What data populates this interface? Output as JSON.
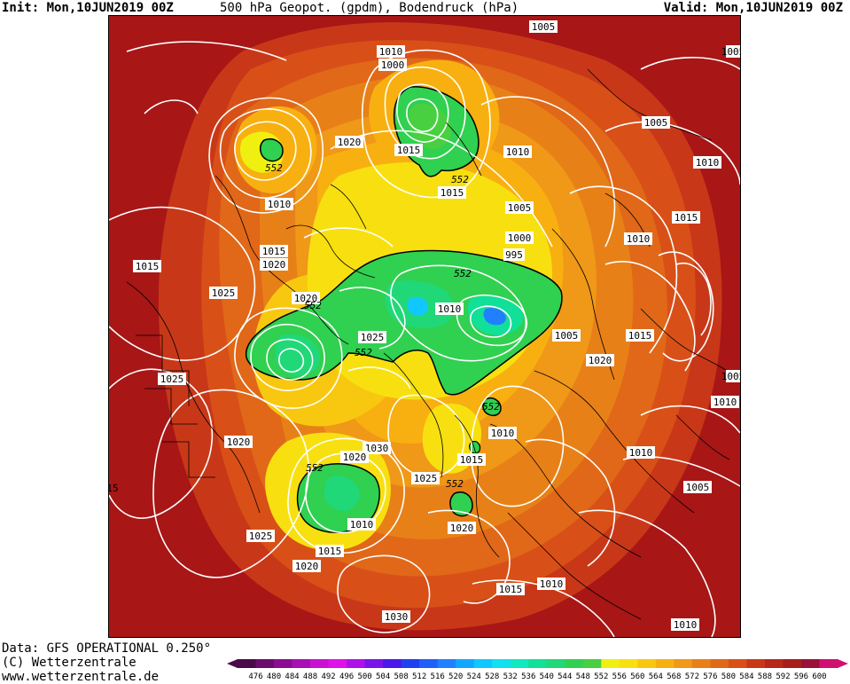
{
  "header": {
    "init": "Init: Mon,10JUN2019 00Z",
    "title": "500 hPa Geopot. (gpdm), Bodendruck (hPa)",
    "valid": "Valid: Mon,10JUN2019 00Z"
  },
  "credits": {
    "data": "Data: GFS OPERATIONAL 0.250°",
    "copyright": "(C) Wetterzentrale",
    "url": "www.wetterzentrale.de"
  },
  "legend": {
    "ticks": [
      "476",
      "480",
      "484",
      "488",
      "492",
      "496",
      "500",
      "504",
      "508",
      "512",
      "516",
      "520",
      "524",
      "528",
      "532",
      "536",
      "540",
      "544",
      "548",
      "552",
      "556",
      "560",
      "564",
      "568",
      "572",
      "576",
      "580",
      "584",
      "588",
      "592",
      "596",
      "600"
    ],
    "colors": [
      "#4a0a4a",
      "#6a0c6e",
      "#8a0d92",
      "#a80fb4",
      "#c810d2",
      "#e010e8",
      "#b010e8",
      "#7a14e8",
      "#4a18e8",
      "#2040f0",
      "#2060f8",
      "#2080ff",
      "#10a8ff",
      "#10c8ff",
      "#10e0f0",
      "#10e8c0",
      "#10e098",
      "#20d878",
      "#30d050",
      "#48d040",
      "#f0f010",
      "#f8e010",
      "#f8c810",
      "#f8b010",
      "#f09818",
      "#e88018",
      "#e06818",
      "#d85018",
      "#c83818",
      "#b82818",
      "#a81c1c",
      "#9a1038",
      "#d01070"
    ]
  },
  "map": {
    "pressure_labels": [
      "1005",
      "1005",
      "1000",
      "1010",
      "552",
      "1020",
      "1015",
      "1010",
      "552",
      "1015",
      "1010",
      "1005",
      "1010",
      "1005",
      "1015",
      "1000",
      "995",
      "1010",
      "1015",
      "1020",
      "552",
      "1025",
      "1020",
      "552",
      "1015",
      "1025",
      "552",
      "1010",
      "1005",
      "1010",
      "1015",
      "1025",
      "1020",
      "1020",
      "552",
      "1030",
      "552",
      "1010",
      "1015",
      "1025",
      "552",
      "1020",
      "1005",
      "1025",
      "1020",
      "1015",
      "1020",
      "1010",
      "1030",
      "1015",
      "1010",
      "1010",
      "15",
      "1005",
      "1005",
      "1010",
      "1010",
      "1005",
      "1015",
      "1025",
      "1015"
    ]
  }
}
